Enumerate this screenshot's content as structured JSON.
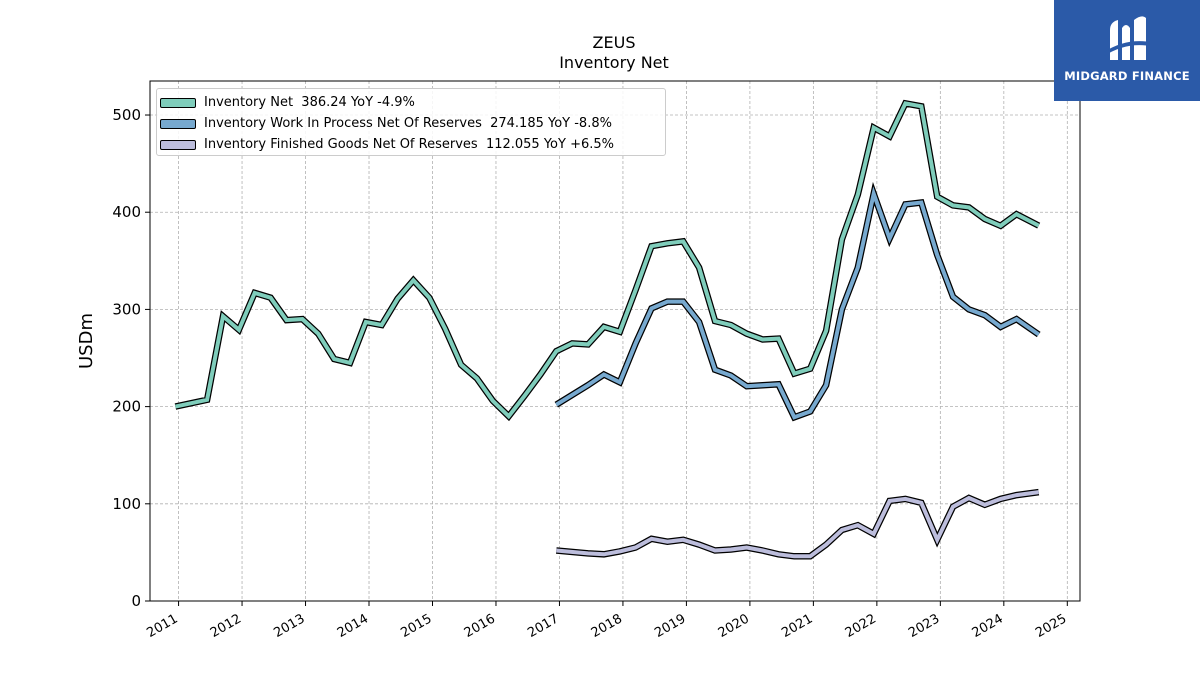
{
  "brand": {
    "name": "MIDGARD FINANCE",
    "color": "#2b5aa8"
  },
  "chart_data": {
    "type": "line",
    "title": "ZEUS",
    "subtitle": "Inventory Net",
    "xlabel": "",
    "ylabel": "USDm",
    "xlim": [
      2010.55,
      2025.2
    ],
    "ylim": [
      0,
      535
    ],
    "x_ticks": [
      "2011",
      "2012",
      "2013",
      "2014",
      "2015",
      "2016",
      "2017",
      "2018",
      "2019",
      "2020",
      "2021",
      "2022",
      "2023",
      "2024",
      "2025"
    ],
    "y_ticks": [
      0,
      100,
      200,
      300,
      400,
      500
    ],
    "grid": true,
    "legend_position": "upper-left",
    "series": [
      {
        "name": "Inventory Net",
        "legend_label": "Inventory Net  386.24 YoY -4.9%",
        "color": "#7fcdbb",
        "x": [
          2010.95,
          2011.45,
          2011.7,
          2011.95,
          2012.2,
          2012.45,
          2012.7,
          2012.95,
          2013.2,
          2013.45,
          2013.7,
          2013.95,
          2014.2,
          2014.45,
          2014.7,
          2014.95,
          2015.2,
          2015.45,
          2015.7,
          2015.95,
          2016.2,
          2016.45,
          2016.7,
          2016.95,
          2017.2,
          2017.45,
          2017.7,
          2017.95,
          2018.2,
          2018.45,
          2018.7,
          2018.95,
          2019.2,
          2019.45,
          2019.7,
          2019.95,
          2020.2,
          2020.45,
          2020.7,
          2020.95,
          2021.2,
          2021.45,
          2021.7,
          2021.95,
          2022.2,
          2022.45,
          2022.7,
          2022.95,
          2023.2,
          2023.45,
          2023.7,
          2023.95,
          2024.2,
          2024.55
        ],
        "values": [
          200,
          207,
          293,
          279,
          317,
          312,
          289,
          290,
          275,
          249,
          245,
          287,
          284,
          311,
          330,
          312,
          280,
          243,
          229,
          206,
          190,
          211,
          233,
          257,
          265,
          264,
          282,
          277,
          320,
          365,
          368,
          370,
          343,
          288,
          284,
          275,
          269,
          270,
          234,
          239,
          278,
          372,
          418,
          487,
          478,
          512,
          509,
          416,
          407,
          405,
          393,
          386,
          398,
          386.24
        ]
      },
      {
        "name": "Inventory Work In Process Net Of Reserves",
        "legend_label": "Inventory Work In Process Net Of Reserves  274.185 YoY -8.8%",
        "color": "#77a9cf",
        "x": [
          2016.95,
          2017.45,
          2017.7,
          2017.95,
          2018.2,
          2018.45,
          2018.7,
          2018.95,
          2019.2,
          2019.45,
          2019.7,
          2019.95,
          2020.2,
          2020.45,
          2020.7,
          2020.95,
          2021.2,
          2021.45,
          2021.7,
          2021.95,
          2022.2,
          2022.45,
          2022.7,
          2022.95,
          2023.2,
          2023.45,
          2023.7,
          2023.95,
          2024.2,
          2024.55
        ],
        "values": [
          202,
          222,
          233,
          225,
          265,
          301,
          308,
          308,
          287,
          238,
          232,
          221,
          222,
          223,
          189,
          195,
          222,
          300,
          343,
          419,
          373,
          408,
          410,
          356,
          313,
          300,
          294,
          282,
          290,
          274.185
        ]
      },
      {
        "name": "Inventory Finished Goods Net Of Reserves",
        "legend_label": "Inventory Finished Goods Net Of Reserves  112.055 YoY +6.5%",
        "color": "#bcbddc",
        "x": [
          2016.95,
          2017.45,
          2017.7,
          2017.95,
          2018.2,
          2018.45,
          2018.7,
          2018.95,
          2019.2,
          2019.45,
          2019.7,
          2019.95,
          2020.2,
          2020.45,
          2020.7,
          2020.95,
          2021.2,
          2021.45,
          2021.7,
          2021.95,
          2022.2,
          2022.45,
          2022.7,
          2022.95,
          2023.2,
          2023.45,
          2023.7,
          2023.95,
          2024.2,
          2024.55
        ],
        "values": [
          52,
          49,
          48,
          51,
          55,
          64,
          61,
          63,
          58,
          52,
          53,
          55,
          52,
          48,
          46,
          46,
          58,
          73,
          78,
          69,
          103,
          105,
          101,
          63,
          97,
          106,
          99,
          105,
          109,
          112.055
        ]
      }
    ]
  }
}
